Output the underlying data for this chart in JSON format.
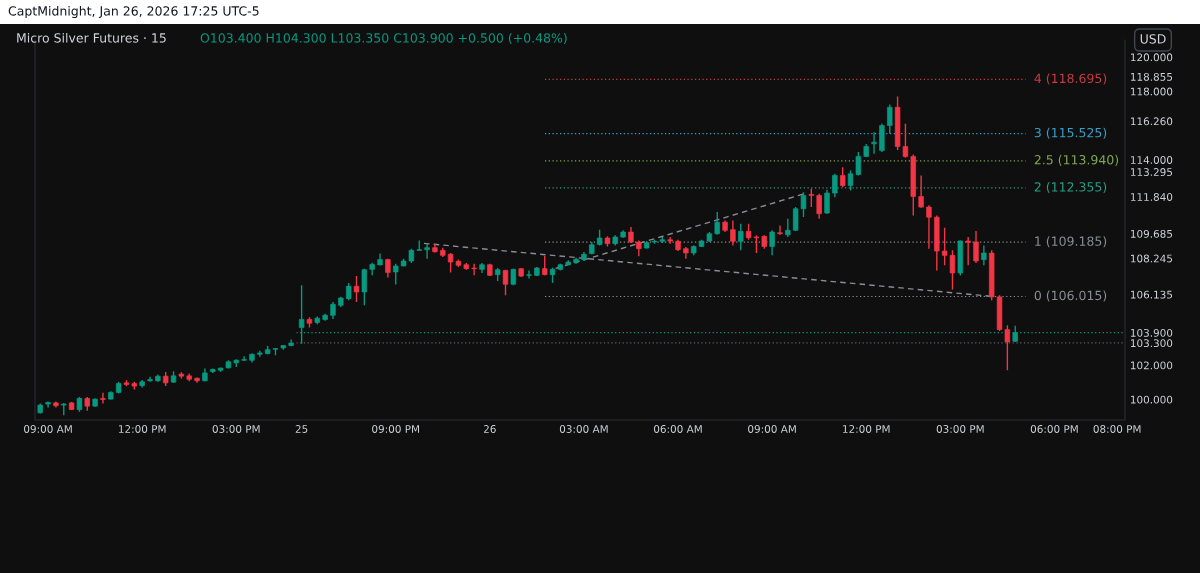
{
  "chart_data": [
    {
      "type": "candlestick",
      "title": "Micro Silver Futures · 15",
      "subtitle": "O103.400 H104.300 L103.350 C103.900 +0.500 (+0.48%)",
      "annotations": [
        "CaptMidnight, Jan 26, 2026 17:25 UTC-5",
        "USD"
      ],
      "colors": [
        "#089981",
        "#089981",
        "#f23645",
        "#089981",
        "#f23645",
        "#089981",
        "#f23645",
        "#089981",
        "#f23645",
        "#089981",
        "#089981",
        "#f23645",
        "#f23645",
        "#089981",
        "#089981",
        "#089981",
        "#f23645",
        "#089981",
        "#f23645",
        "#f23645",
        "#f23645",
        "#089981",
        "#089981",
        "#089981",
        "#089981",
        "#089981",
        "#089981",
        "#089981",
        "#089981",
        "#089981",
        "#089981",
        "#089981",
        "#089981"
      ],
      "x": [
        "2026-01-23T08:45",
        "2026-01-23T09:00",
        "2026-01-23T09:15",
        "2026-01-23T09:30",
        "2026-01-23T09:45",
        "2026-01-23T10:00",
        "2026-01-23T10:15",
        "2026-01-23T10:30",
        "2026-01-23T10:45",
        "2026-01-23T11:00",
        "2026-01-23T11:15",
        "2026-01-23T11:30",
        "2026-01-23T11:45",
        "2026-01-23T12:00",
        "2026-01-23T12:15",
        "2026-01-23T12:30",
        "2026-01-23T12:45",
        "2026-01-23T13:00",
        "2026-01-23T13:15",
        "2026-01-23T13:30",
        "2026-01-23T13:45",
        "2026-01-23T14:00",
        "2026-01-23T14:15",
        "2026-01-23T14:30",
        "2026-01-23T14:45",
        "2026-01-23T15:00",
        "2026-01-23T15:15",
        "2026-01-23T15:30",
        "2026-01-23T15:45",
        "2026-01-23T16:00",
        "2026-01-23T16:15",
        "2026-01-23T16:30",
        "2026-01-23T16:45"
      ],
      "ohlc": [
        [
          99.22,
          99.76,
          99.18,
          99.67
        ],
        [
          99.73,
          99.88,
          99.53,
          99.82
        ],
        [
          99.8,
          99.88,
          99.53,
          99.63
        ],
        [
          99.67,
          99.8,
          99.08,
          99.73
        ],
        [
          99.8,
          99.86,
          99.38,
          99.41
        ],
        [
          99.41,
          100.15,
          99.28,
          100.06
        ],
        [
          100.06,
          100.15,
          99.34,
          99.61
        ],
        [
          99.61,
          100.06,
          99.57,
          100.02
        ],
        [
          100.06,
          100.39,
          99.76,
          100.0
        ],
        [
          100.02,
          100.48,
          100.0,
          100.41
        ],
        [
          100.41,
          101.03,
          100.35,
          100.93
        ],
        [
          100.97,
          101.13,
          100.78,
          100.87
        ],
        [
          100.93,
          101.03,
          100.58,
          100.78
        ],
        [
          100.81,
          101.13,
          100.7,
          101.03
        ],
        [
          101.09,
          101.32,
          101.03,
          101.16
        ],
        [
          101.09,
          101.46,
          101.03,
          101.36
        ],
        [
          101.36,
          101.61,
          100.78,
          100.97
        ],
        [
          101.01,
          101.65,
          100.97,
          101.38
        ],
        [
          101.48,
          101.59,
          101.22,
          101.36
        ],
        [
          101.38,
          101.51,
          101.07,
          101.18
        ],
        [
          101.24,
          101.28,
          100.97,
          101.09
        ],
        [
          101.09,
          101.81,
          101.07,
          101.55
        ],
        [
          101.63,
          101.81,
          101.55,
          101.75
        ],
        [
          101.71,
          101.86,
          101.61,
          101.83
        ],
        [
          101.85,
          102.29,
          101.81,
          102.2
        ],
        [
          102.14,
          102.35,
          101.9,
          102.29
        ],
        [
          102.29,
          102.53,
          102.25,
          102.33
        ],
        [
          102.29,
          102.68,
          102.16,
          102.64
        ],
        [
          102.64,
          102.84,
          102.49,
          102.72
        ],
        [
          102.68,
          103.13,
          102.64,
          102.91
        ],
        [
          102.93,
          103.01,
          102.58,
          102.97
        ],
        [
          103.01,
          103.17,
          102.91,
          103.15
        ],
        [
          103.15,
          103.5,
          103.11,
          103.3
        ]
      ],
      "xlim": [
        "2026-01-23T08:35",
        "2026-01-23T16:55"
      ],
      "ylim": [
        98.8,
        121
      ],
      "xticks": [
        {
          "value": "2026-01-23T09:00",
          "label": "09:00 AM"
        },
        {
          "value": "2026-01-23T12:00",
          "label": "12:00 PM"
        },
        {
          "value": "2026-01-23T15:00",
          "label": "03:00 PM"
        }
      ],
      "tick_labels": "x"
    },
    {
      "type": "candlestick",
      "colors": [
        "#089981",
        "#f23645",
        "#089981",
        "#089981",
        "#089981",
        "#089981",
        "#089981",
        "#f23645",
        "#089981",
        "#089981",
        "#089981",
        "#f23645",
        "#089981",
        "#089981",
        "#089981",
        "#089981",
        "#089981",
        "#f23645",
        "#f23645",
        "#f23645",
        "#f23645",
        "#f23645",
        "#f23645",
        "#089981",
        "#f23645",
        "#089981",
        "#f23645",
        "#089981",
        "#f23645",
        "#089981",
        "#089981",
        "#f23645",
        "#089981",
        "#089981",
        "#089981",
        "#089981",
        "#089981",
        "#089981",
        "#089981",
        "#f23645",
        "#089981",
        "#089981",
        "#f23645",
        "#f23645",
        "#089981",
        "#089981",
        "#089981",
        "#f23645",
        "#f23645",
        "#f23645",
        "#089981",
        "#089981",
        "#089981",
        "#089981",
        "#f23645",
        "#f23645",
        "#089981",
        "#f23645",
        "#f23645",
        "#f23645",
        "#089981",
        "#f23645",
        "#089981",
        "#089981",
        "#089981",
        "#f23645",
        "#f23645",
        "#089981",
        "#089981",
        "#f23645",
        "#089981",
        "#089981",
        "#089981",
        "#089981",
        "#089981",
        "#089981",
        "#f23645",
        "#f23645",
        "#f23645",
        "#f23645",
        "#f23645",
        "#f23645",
        "#f23645",
        "#f23645",
        "#089981",
        "#f23645",
        "#f23645",
        "#089981",
        "#f23645",
        "#f23645",
        "#f23645",
        "#089981"
      ],
      "x": [
        "2026-01-25T18:00",
        "2026-01-25T18:15",
        "2026-01-25T18:30",
        "2026-01-25T18:45",
        "2026-01-25T19:00",
        "2026-01-25T19:15",
        "2026-01-25T19:30",
        "2026-01-25T19:45",
        "2026-01-25T20:00",
        "2026-01-25T20:15",
        "2026-01-25T20:30",
        "2026-01-25T20:45",
        "2026-01-25T21:00",
        "2026-01-25T21:15",
        "2026-01-25T21:30",
        "2026-01-25T21:45",
        "2026-01-25T22:00",
        "2026-01-25T22:15",
        "2026-01-25T22:30",
        "2026-01-25T22:45",
        "2026-01-25T23:00",
        "2026-01-25T23:15",
        "2026-01-25T23:30",
        "2026-01-25T23:45",
        "2026-01-26T00:00",
        "2026-01-26T00:15",
        "2026-01-26T00:30",
        "2026-01-26T00:45",
        "2026-01-26T01:00",
        "2026-01-26T01:15",
        "2026-01-26T01:30",
        "2026-01-26T01:45",
        "2026-01-26T02:00",
        "2026-01-26T02:15",
        "2026-01-26T02:30",
        "2026-01-26T02:45",
        "2026-01-26T03:00",
        "2026-01-26T03:15",
        "2026-01-26T03:30",
        "2026-01-26T03:45",
        "2026-01-26T04:00",
        "2026-01-26T04:15",
        "2026-01-26T04:30",
        "2026-01-26T04:45",
        "2026-01-26T05:00",
        "2026-01-26T05:15",
        "2026-01-26T05:30",
        "2026-01-26T05:45",
        "2026-01-26T06:00",
        "2026-01-26T06:15",
        "2026-01-26T06:30",
        "2026-01-26T06:45",
        "2026-01-26T07:00",
        "2026-01-26T07:15",
        "2026-01-26T07:30",
        "2026-01-26T07:45",
        "2026-01-26T08:00",
        "2026-01-26T08:15",
        "2026-01-26T08:30",
        "2026-01-26T08:45",
        "2026-01-26T09:00",
        "2026-01-26T09:15",
        "2026-01-26T09:30",
        "2026-01-26T09:45",
        "2026-01-26T10:00",
        "2026-01-26T10:15",
        "2026-01-26T10:30",
        "2026-01-26T10:45",
        "2026-01-26T11:00",
        "2026-01-26T11:15",
        "2026-01-26T11:30",
        "2026-01-26T11:45",
        "2026-01-26T12:00",
        "2026-01-26T12:15",
        "2026-01-26T12:30",
        "2026-01-26T12:45",
        "2026-01-26T13:00",
        "2026-01-26T13:15",
        "2026-01-26T13:30",
        "2026-01-26T13:45",
        "2026-01-26T14:00",
        "2026-01-26T14:15",
        "2026-01-26T14:30",
        "2026-01-26T14:45",
        "2026-01-26T15:00",
        "2026-01-26T15:15",
        "2026-01-26T15:30",
        "2026-01-26T15:45",
        "2026-01-26T16:00",
        "2026-01-26T16:15",
        "2026-01-26T16:30",
        "2026-01-26T16:45"
      ],
      "ohlc": [
        [
          104.2,
          106.67,
          103.26,
          104.67
        ],
        [
          104.67,
          104.8,
          104.2,
          104.45
        ],
        [
          104.5,
          104.85,
          104.4,
          104.75
        ],
        [
          104.67,
          105.0,
          104.6,
          104.92
        ],
        [
          104.92,
          105.7,
          104.7,
          105.56
        ],
        [
          105.5,
          106.0,
          105.4,
          105.93
        ],
        [
          105.89,
          106.8,
          105.8,
          106.61
        ],
        [
          106.61,
          107.21,
          105.7,
          106.28
        ],
        [
          106.28,
          107.64,
          105.5,
          107.58
        ],
        [
          107.6,
          107.99,
          107.25,
          107.89
        ],
        [
          107.86,
          108.52,
          107.84,
          108.17
        ],
        [
          108.17,
          108.22,
          107.12,
          107.41
        ],
        [
          107.45,
          107.93,
          106.71,
          107.8
        ],
        [
          107.8,
          108.22,
          107.78,
          108.09
        ],
        [
          108.09,
          108.81,
          107.97,
          108.71
        ],
        [
          108.71,
          109.29,
          108.67,
          108.75
        ],
        [
          108.75,
          109.1,
          108.22,
          108.87
        ],
        [
          108.87,
          109.1,
          108.59,
          108.63
        ],
        [
          108.71,
          108.87,
          108.32,
          108.42
        ],
        [
          108.48,
          108.56,
          107.41,
          108.03
        ],
        [
          108.07,
          108.17,
          107.74,
          107.84
        ],
        [
          107.87,
          107.97,
          107.58,
          107.64
        ],
        [
          107.68,
          107.93,
          107.25,
          107.64
        ],
        [
          107.6,
          107.97,
          107.39,
          107.87
        ],
        [
          107.87,
          107.93,
          107.21,
          107.25
        ],
        [
          107.29,
          107.68,
          106.92,
          107.58
        ],
        [
          107.54,
          107.58,
          106.09,
          106.73
        ],
        [
          106.73,
          107.64,
          106.67,
          107.6
        ],
        [
          107.64,
          107.68,
          107.16,
          107.21
        ],
        [
          107.25,
          107.54,
          107.06,
          107.29
        ],
        [
          107.25,
          107.74,
          107.21,
          107.68
        ],
        [
          107.64,
          108.38,
          107.25,
          107.29
        ],
        [
          107.29,
          107.7,
          106.81,
          107.6
        ],
        [
          107.6,
          107.93,
          107.54,
          107.87
        ],
        [
          107.87,
          108.13,
          107.84,
          108.03
        ],
        [
          108.0,
          108.28,
          107.93,
          108.19
        ],
        [
          108.17,
          108.61,
          108.09,
          108.48
        ],
        [
          108.52,
          109.2,
          108.48,
          109.04
        ],
        [
          109.06,
          109.92,
          109.0,
          109.43
        ],
        [
          109.43,
          109.53,
          108.94,
          109.1
        ],
        [
          109.1,
          109.59,
          109.0,
          109.49
        ],
        [
          109.49,
          109.88,
          109.45,
          109.78
        ],
        [
          109.78,
          110.07,
          109.14,
          109.2
        ],
        [
          109.2,
          109.29,
          108.36,
          108.81
        ],
        [
          108.85,
          109.24,
          108.81,
          109.16
        ],
        [
          109.2,
          109.33,
          109.1,
          109.24
        ],
        [
          109.24,
          109.49,
          109.14,
          109.33
        ],
        [
          109.33,
          109.49,
          109.1,
          109.26
        ],
        [
          109.24,
          109.33,
          108.67,
          108.75
        ],
        [
          108.81,
          108.91,
          108.22,
          108.56
        ],
        [
          108.56,
          109.0,
          108.42,
          108.94
        ],
        [
          108.94,
          109.33,
          108.91,
          109.26
        ],
        [
          109.26,
          109.78,
          109.2,
          109.68
        ],
        [
          109.68,
          110.95,
          109.64,
          110.36
        ],
        [
          110.36,
          110.46,
          109.78,
          109.88
        ],
        [
          109.92,
          110.46,
          109.0,
          109.24
        ],
        [
          109.24,
          110.27,
          108.71,
          109.82
        ],
        [
          109.82,
          110.27,
          109.33,
          109.45
        ],
        [
          109.49,
          109.59,
          108.56,
          109.45
        ],
        [
          109.53,
          109.59,
          108.81,
          108.94
        ],
        [
          108.94,
          109.88,
          108.42,
          109.78
        ],
        [
          109.74,
          110.17,
          109.62,
          109.68
        ],
        [
          109.62,
          110.56,
          109.49,
          109.88
        ],
        [
          109.88,
          111.24,
          109.84,
          111.14
        ],
        [
          111.14,
          112.11,
          110.66,
          111.92
        ],
        [
          111.98,
          112.31,
          111.24,
          111.92
        ],
        [
          111.92,
          112.02,
          110.56,
          110.85
        ],
        [
          110.89,
          112.25,
          110.85,
          112.06
        ],
        [
          112.06,
          113.18,
          111.82,
          113.09
        ],
        [
          113.09,
          113.57,
          112.41,
          112.5
        ],
        [
          112.5,
          113.38,
          112.21,
          113.18
        ],
        [
          113.14,
          114.45,
          113.09,
          114.2
        ],
        [
          114.2,
          114.93,
          114.16,
          114.78
        ],
        [
          114.94,
          115.61,
          114.35,
          115.03
        ],
        [
          114.55,
          116.1,
          114.45,
          116.0
        ],
        [
          116.0,
          117.23,
          115.52,
          117.07
        ],
        [
          117.07,
          117.7,
          114.58,
          114.78
        ],
        [
          114.78,
          116.1,
          114.12,
          114.2
        ],
        [
          114.2,
          114.31,
          110.75,
          111.86
        ],
        [
          111.86,
          113.09,
          111.2,
          111.24
        ],
        [
          111.24,
          111.34,
          108.81,
          110.65
        ],
        [
          110.65,
          110.75,
          107.54,
          108.67
        ],
        [
          108.67,
          110.03,
          107.84,
          108.42
        ],
        [
          108.42,
          108.71,
          106.42,
          107.39
        ],
        [
          107.39,
          109.29,
          107.25,
          109.26
        ],
        [
          109.26,
          109.49,
          107.84,
          109.18
        ],
        [
          109.2,
          109.84,
          107.97,
          108.09
        ],
        [
          108.17,
          109.0,
          107.84,
          108.55
        ],
        [
          108.55,
          108.71,
          105.79,
          105.99
        ],
        [
          105.99,
          106.09,
          104.0,
          104.08
        ],
        [
          104.08,
          104.33,
          101.71,
          103.36
        ],
        [
          103.4,
          104.3,
          103.35,
          103.9
        ]
      ],
      "series": [
        {
          "type": "line",
          "color": "#8a8d96",
          "line_style": "dashed",
          "x": [
            "2026-01-25T21:54",
            "2026-01-26T15:57"
          ],
          "values": [
            109.12,
            106.03
          ]
        },
        {
          "type": "line",
          "color": "#8a8d96",
          "line_style": "dashed",
          "x": [
            "2026-01-26T02:06",
            "2026-01-26T10:04"
          ],
          "values": [
            107.66,
            112.04
          ]
        }
      ],
      "ref_lines": [
        {
          "axis": "y",
          "value": 118.695,
          "label": "4 (118.695)",
          "color": "#c83a44",
          "line_style": "dotted"
        },
        {
          "axis": "y",
          "value": 115.525,
          "label": "3 (115.525)",
          "color": "#3aa0c8",
          "line_style": "dotted"
        },
        {
          "axis": "y",
          "value": 113.94,
          "label": "2.5 (113.940)",
          "color": "#7fa84e",
          "line_style": "dotted"
        },
        {
          "axis": "y",
          "value": 112.355,
          "label": "2 (112.355)",
          "color": "#2a9d84",
          "line_style": "dotted"
        },
        {
          "axis": "y",
          "value": 109.185,
          "label": "1 (109.185)",
          "color": "#8a8d96",
          "line_style": "dotted"
        },
        {
          "axis": "y",
          "value": 106.015,
          "label": "0 (106.015)",
          "color": "#8a8d96",
          "line_style": "dotted"
        },
        {
          "axis": "y",
          "value": 103.9,
          "color": "#089981",
          "line_style": "dotted"
        },
        {
          "axis": "y",
          "value": 103.3,
          "color": "#5d606b",
          "line_style": "dotted"
        }
      ],
      "xlim": [
        "2026-01-25T17:50",
        "2026-01-26T20:15"
      ],
      "ylim": [
        98.8,
        121
      ],
      "xticks": [
        {
          "value": "2026-01-25T18:00",
          "label": "25"
        },
        {
          "value": "2026-01-25T21:00",
          "label": "09:00 PM"
        },
        {
          "value": "2026-01-26T00:00",
          "label": "26"
        },
        {
          "value": "2026-01-26T03:00",
          "label": "03:00 AM"
        },
        {
          "value": "2026-01-26T06:00",
          "label": "06:00 AM"
        },
        {
          "value": "2026-01-26T09:00",
          "label": "09:00 AM"
        },
        {
          "value": "2026-01-26T12:00",
          "label": "12:00 PM"
        },
        {
          "value": "2026-01-26T15:00",
          "label": "03:00 PM"
        },
        {
          "value": "2026-01-26T18:00",
          "label": "06:00 PM"
        },
        {
          "value": "2026-01-26T20:00",
          "label": "08:00 PM"
        }
      ],
      "yticks": [
        {
          "value": 100,
          "label": "100.000"
        },
        {
          "value": 102,
          "label": "102.000"
        },
        {
          "value": 103.3,
          "label": "103.300"
        },
        {
          "value": 103.9,
          "label": "103.900"
        },
        {
          "value": 106.135,
          "label": "106.135"
        },
        {
          "value": 108.245,
          "label": "108.245"
        },
        {
          "value": 109.685,
          "label": "109.685"
        },
        {
          "value": 111.84,
          "label": "111.840"
        },
        {
          "value": 113.295,
          "label": "113.295"
        },
        {
          "value": 114,
          "label": "114.000"
        },
        {
          "value": 116.26,
          "label": "116.260"
        },
        {
          "value": 118,
          "label": "118.000"
        },
        118.855,
        {
          "value": 120,
          "label": "120.000"
        }
      ]
    }
  ]
}
